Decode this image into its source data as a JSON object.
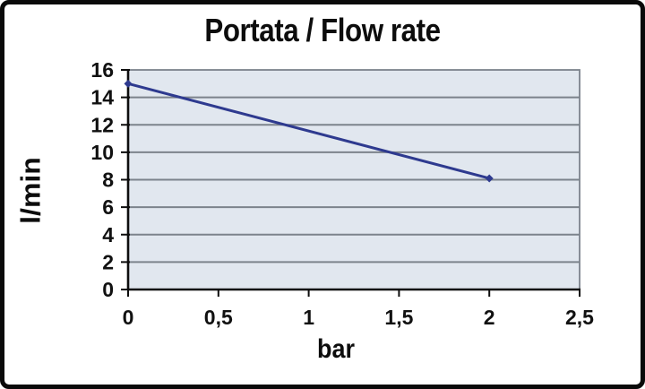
{
  "window": {
    "background": "#ffffff",
    "frame_color": "#0a0a0a"
  },
  "chart_data": {
    "type": "line",
    "title": "Portata / Flow rate",
    "xlabel": "bar",
    "ylabel": "l/min",
    "xlim": [
      0,
      2.5
    ],
    "ylim": [
      0,
      16
    ],
    "x_ticks": [
      {
        "label": "0",
        "value": 0
      },
      {
        "label": "0,5",
        "value": 0.5
      },
      {
        "label": "1",
        "value": 1
      },
      {
        "label": "1,5",
        "value": 1.5
      },
      {
        "label": "2",
        "value": 2
      },
      {
        "label": "2,5",
        "value": 2.5
      }
    ],
    "y_ticks": [
      {
        "label": "0",
        "value": 0
      },
      {
        "label": "2",
        "value": 2
      },
      {
        "label": "4",
        "value": 4
      },
      {
        "label": "6",
        "value": 6
      },
      {
        "label": "8",
        "value": 8
      },
      {
        "label": "10",
        "value": 10
      },
      {
        "label": "12",
        "value": 12
      },
      {
        "label": "14",
        "value": 14
      },
      {
        "label": "16",
        "value": 16
      }
    ],
    "grid": "horizontal-only",
    "legend": "none",
    "plot_background": "#e1e7ef",
    "grid_color": "#7c838c",
    "axis_color": "#0d0d0d",
    "tick_label_color": "#111111",
    "series": [
      {
        "name": "Flow rate",
        "color": "#2e3a8f",
        "marker": "diamond",
        "points": [
          {
            "x": 0,
            "y": 15
          },
          {
            "x": 2,
            "y": 8.1
          }
        ]
      }
    ]
  }
}
